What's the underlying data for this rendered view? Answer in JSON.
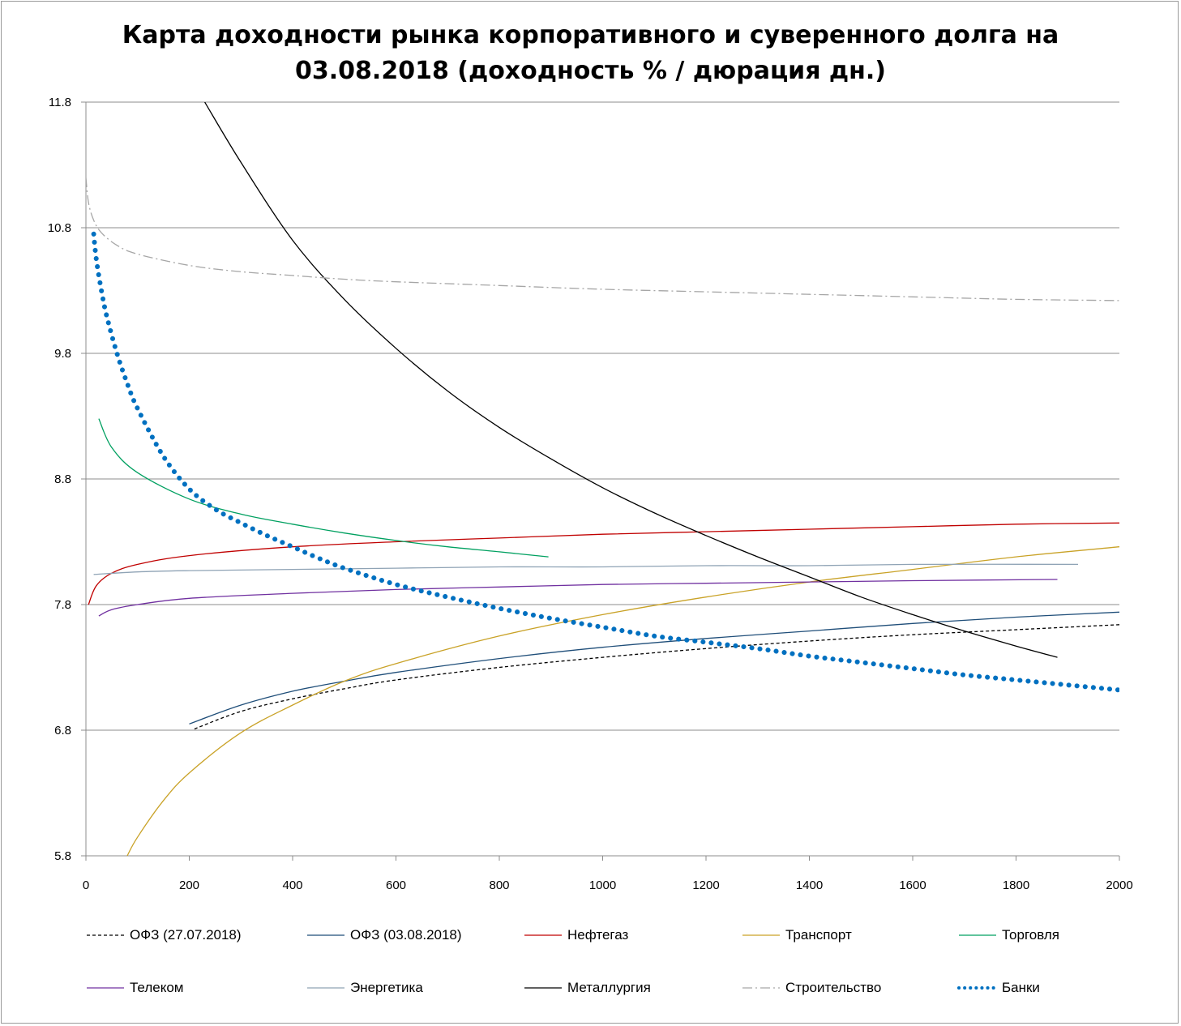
{
  "chart_data": {
    "type": "line",
    "title": "Карта доходности рынка корпоративного и суверенного долга на 03.08.2018 (доходность % / дюрация дн.)",
    "title_lines": [
      "Карта доходности рынка корпоративного и суверенного долга на",
      "03.08.2018 (доходность % / дюрация дн.)"
    ],
    "xlabel": "",
    "ylabel": "",
    "xlim": [
      0,
      2000
    ],
    "ylim": [
      5.8,
      11.8
    ],
    "x_ticks": [
      "0",
      "200",
      "400",
      "600",
      "800",
      "1000",
      "1200",
      "1400",
      "1600",
      "1800",
      "2000"
    ],
    "y_ticks": [
      "5.8",
      "6.8",
      "7.8",
      "8.8",
      "9.8",
      "10.8",
      "11.8"
    ],
    "grid": "horizontal",
    "legend_position": "bottom",
    "series": [
      {
        "name": "ОФЗ (27.07.2018)",
        "color": "#000000",
        "dash": "dashed",
        "x": [
          210,
          300,
          400,
          500,
          600,
          800,
          1000,
          1200,
          1400,
          1600,
          1800,
          2000
        ],
        "y": [
          6.81,
          6.95,
          7.05,
          7.13,
          7.2,
          7.3,
          7.38,
          7.45,
          7.51,
          7.56,
          7.6,
          7.64
        ]
      },
      {
        "name": "ОФЗ (03.08.2018)",
        "color": "#1f4e79",
        "dash": "solid",
        "x": [
          200,
          300,
          400,
          500,
          600,
          800,
          1000,
          1200,
          1400,
          1600,
          1800,
          2000
        ],
        "y": [
          6.85,
          7.0,
          7.11,
          7.19,
          7.26,
          7.37,
          7.46,
          7.53,
          7.59,
          7.65,
          7.7,
          7.74
        ]
      },
      {
        "name": "Нефтегаз",
        "color": "#c00000",
        "dash": "solid",
        "x": [
          5,
          20,
          50,
          100,
          200,
          400,
          600,
          800,
          1000,
          1200,
          1400,
          1600,
          1800,
          2000
        ],
        "y": [
          7.8,
          7.95,
          8.05,
          8.12,
          8.19,
          8.26,
          8.3,
          8.33,
          8.36,
          8.38,
          8.4,
          8.42,
          8.44,
          8.45
        ]
      },
      {
        "name": "Транспорт",
        "color": "#c9a227",
        "dash": "solid",
        "x": [
          80,
          100,
          150,
          200,
          300,
          400,
          500,
          600,
          800,
          1000,
          1200,
          1400,
          1600,
          1800,
          2000
        ],
        "y": [
          5.8,
          5.95,
          6.24,
          6.46,
          6.78,
          7.0,
          7.19,
          7.33,
          7.55,
          7.72,
          7.86,
          7.98,
          8.08,
          8.18,
          8.26
        ]
      },
      {
        "name": "Торговля",
        "color": "#00a060",
        "dash": "solid",
        "x": [
          25,
          50,
          100,
          200,
          300,
          400,
          500,
          600,
          700,
          800,
          895
        ],
        "y": [
          9.28,
          9.05,
          8.85,
          8.64,
          8.52,
          8.44,
          8.37,
          8.31,
          8.26,
          8.22,
          8.18
        ]
      },
      {
        "name": "Телеком",
        "color": "#7030a0",
        "dash": "solid",
        "x": [
          25,
          50,
          100,
          200,
          400,
          600,
          800,
          1000,
          1200,
          1400,
          1600,
          1880
        ],
        "y": [
          7.71,
          7.76,
          7.8,
          7.85,
          7.89,
          7.92,
          7.94,
          7.96,
          7.97,
          7.98,
          7.99,
          8.0
        ]
      },
      {
        "name": "Энергетика",
        "color": "#8fa3b5",
        "dash": "solid",
        "x": [
          15,
          100,
          200,
          400,
          600,
          800,
          1000,
          1200,
          1400,
          1600,
          1920
        ],
        "y": [
          8.04,
          8.06,
          8.07,
          8.08,
          8.09,
          8.1,
          8.1,
          8.11,
          8.11,
          8.12,
          8.12
        ]
      },
      {
        "name": "Металлургия",
        "color": "#000000",
        "dash": "solid",
        "x": [
          230,
          300,
          400,
          500,
          600,
          700,
          800,
          900,
          1000,
          1100,
          1200,
          1300,
          1400,
          1500,
          1600,
          1700,
          1800,
          1880
        ],
        "y": [
          11.8,
          11.32,
          10.7,
          10.23,
          9.84,
          9.5,
          9.21,
          8.96,
          8.73,
          8.53,
          8.35,
          8.18,
          8.02,
          7.86,
          7.72,
          7.59,
          7.47,
          7.38
        ]
      },
      {
        "name": "Строительство",
        "color": "#a6a6a6",
        "dash": "dashdot",
        "x": [
          0,
          5,
          15,
          30,
          60,
          100,
          200,
          300,
          400,
          500,
          600,
          800,
          1000,
          1200,
          1400,
          1600,
          1800,
          2000
        ],
        "y": [
          11.2,
          11.0,
          10.86,
          10.76,
          10.66,
          10.59,
          10.5,
          10.45,
          10.42,
          10.39,
          10.37,
          10.34,
          10.31,
          10.29,
          10.27,
          10.25,
          10.23,
          10.22
        ]
      },
      {
        "name": "Банки",
        "color": "#0070c0",
        "dash": "dotted",
        "x": [
          15,
          20,
          30,
          40,
          60,
          80,
          100,
          150,
          200,
          250,
          300,
          350,
          400,
          450,
          500,
          600,
          700,
          800,
          900,
          1000,
          1100,
          1200,
          1300,
          1400,
          1500,
          1600,
          1700,
          1800,
          1900,
          2000
        ],
        "y": [
          10.75,
          10.55,
          10.3,
          10.1,
          9.8,
          9.56,
          9.36,
          8.98,
          8.72,
          8.56,
          8.45,
          8.35,
          8.26,
          8.17,
          8.09,
          7.96,
          7.86,
          7.77,
          7.69,
          7.62,
          7.55,
          7.5,
          7.45,
          7.39,
          7.34,
          7.29,
          7.24,
          7.2,
          7.16,
          7.12
        ]
      }
    ]
  }
}
